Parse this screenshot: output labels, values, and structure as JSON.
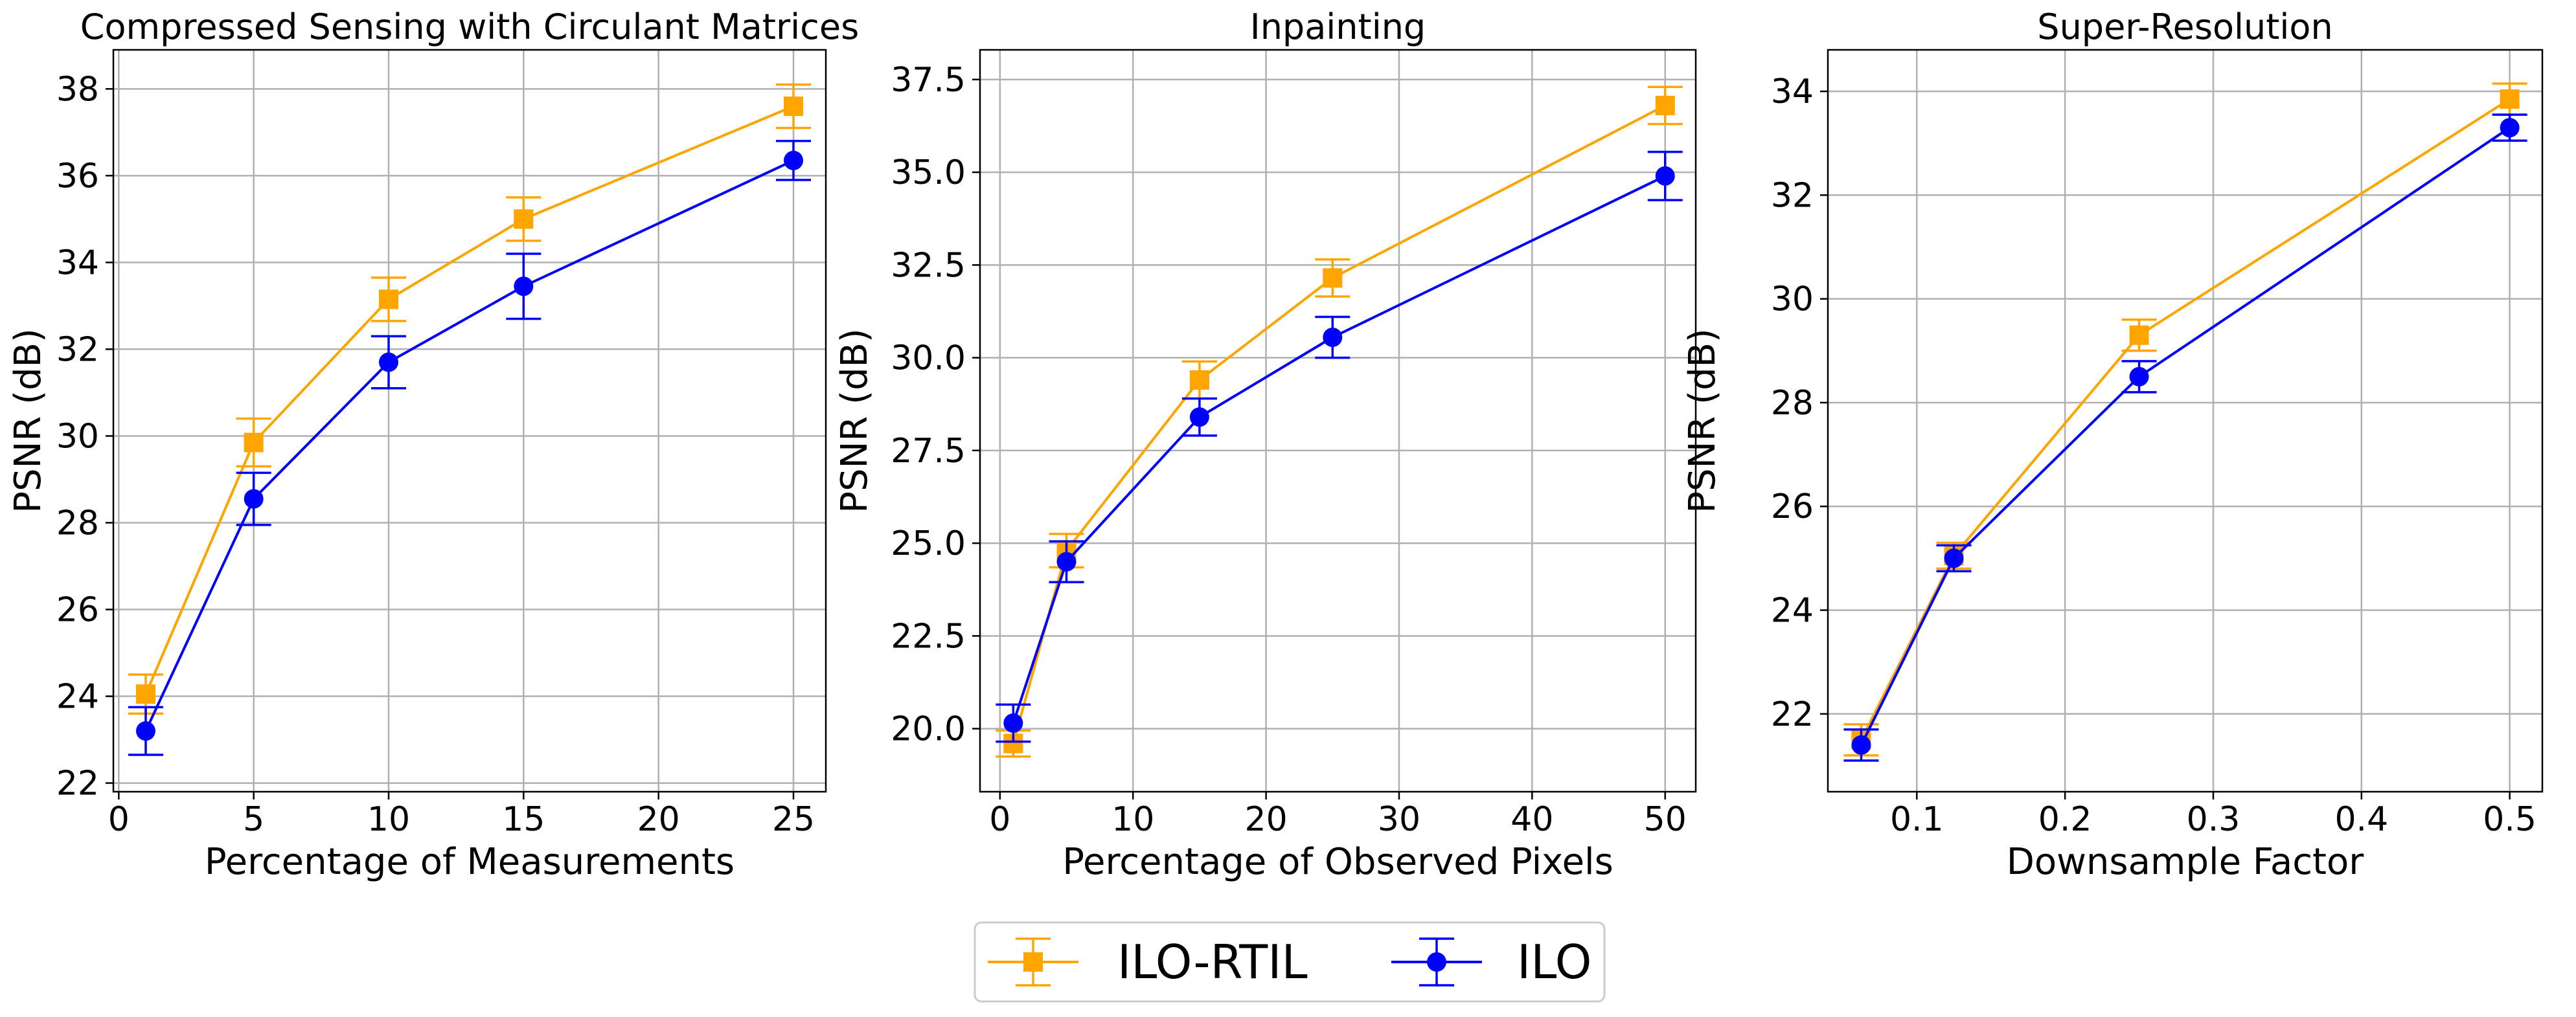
{
  "chart_data": [
    {
      "type": "line",
      "title": "Compressed Sensing with Circulant Matrices",
      "xlabel": "Percentage of Measurements",
      "ylabel": "PSNR (dB)",
      "x": [
        1,
        5,
        10,
        15,
        25
      ],
      "xlim": [
        -0.2,
        26.2
      ],
      "ylim": [
        21.8,
        38.9
      ],
      "xticks": [
        0,
        5,
        10,
        15,
        20,
        25
      ],
      "yticks": [
        22,
        24,
        26,
        28,
        30,
        32,
        34,
        36,
        38
      ],
      "ytick_labels": [
        "22",
        "24",
        "26",
        "28",
        "30",
        "32",
        "34",
        "36",
        "38"
      ],
      "grid": true,
      "series": [
        {
          "name": "ILO-RTIL",
          "color": "#FFA500",
          "marker": "square",
          "values": [
            24.05,
            29.85,
            33.15,
            35.0,
            37.6
          ],
          "errors": [
            0.45,
            0.55,
            0.5,
            0.5,
            0.5
          ]
        },
        {
          "name": "ILO",
          "color": "#0000FF",
          "marker": "circle",
          "values": [
            23.2,
            28.55,
            31.7,
            33.45,
            36.35
          ],
          "errors": [
            0.55,
            0.6,
            0.6,
            0.75,
            0.45
          ]
        }
      ]
    },
    {
      "type": "line",
      "title": "Inpainting",
      "xlabel": "Percentage of Observed Pixels",
      "ylabel": "PSNR (dB)",
      "x": [
        1,
        5,
        15,
        25,
        50
      ],
      "xlim": [
        -1.5,
        52.3
      ],
      "ylim": [
        18.3,
        38.3
      ],
      "xticks": [
        0,
        10,
        20,
        30,
        40,
        50
      ],
      "yticks": [
        20.0,
        22.5,
        25.0,
        27.5,
        30.0,
        32.5,
        35.0,
        37.5
      ],
      "ytick_labels": [
        "20.0",
        "22.5",
        "25.0",
        "27.5",
        "30.0",
        "32.5",
        "35.0",
        "37.5"
      ],
      "grid": true,
      "series": [
        {
          "name": "ILO-RTIL",
          "color": "#FFA500",
          "marker": "square",
          "values": [
            19.6,
            24.8,
            29.4,
            32.15,
            36.8
          ],
          "errors": [
            0.35,
            0.45,
            0.5,
            0.5,
            0.5
          ]
        },
        {
          "name": "ILO",
          "color": "#0000FF",
          "marker": "circle",
          "values": [
            20.15,
            24.5,
            28.4,
            30.55,
            34.9
          ],
          "errors": [
            0.5,
            0.55,
            0.5,
            0.55,
            0.65
          ]
        }
      ]
    },
    {
      "type": "line",
      "title": "Super-Resolution",
      "xlabel": "Downsample Factor",
      "ylabel": "PSNR (dB)",
      "x": [
        0.0625,
        0.125,
        0.25,
        0.5
      ],
      "xlim": [
        0.04,
        0.522
      ],
      "ylim": [
        20.5,
        34.8
      ],
      "xticks": [
        0.1,
        0.2,
        0.3,
        0.4,
        0.5
      ],
      "yticks": [
        22,
        24,
        26,
        28,
        30,
        32,
        34
      ],
      "ytick_labels": [
        "22",
        "24",
        "26",
        "28",
        "30",
        "32",
        "34"
      ],
      "grid": true,
      "series": [
        {
          "name": "ILO-RTIL",
          "color": "#FFA500",
          "marker": "square",
          "values": [
            21.5,
            25.05,
            29.3,
            33.85
          ],
          "errors": [
            0.3,
            0.25,
            0.3,
            0.3
          ]
        },
        {
          "name": "ILO",
          "color": "#0000FF",
          "marker": "circle",
          "values": [
            21.4,
            25.0,
            28.5,
            33.3
          ],
          "errors": [
            0.3,
            0.25,
            0.3,
            0.25
          ]
        }
      ]
    }
  ],
  "legend": {
    "placement": "bottom-center",
    "entries": [
      {
        "label": "ILO-RTIL",
        "color": "#FFA500",
        "marker": "square"
      },
      {
        "label": "ILO",
        "color": "#0000FF",
        "marker": "circle"
      }
    ]
  }
}
